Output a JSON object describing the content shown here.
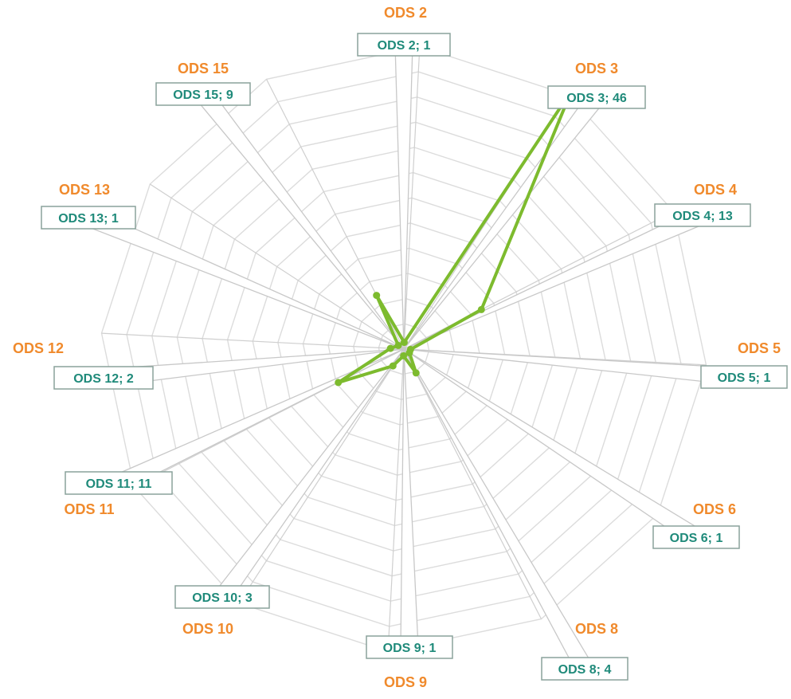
{
  "chart_data": {
    "type": "radar",
    "title": "",
    "categories": [
      "ODS 2",
      "ODS 3",
      "ODS 4",
      "ODS 5",
      "ODS 6",
      "ODS 8",
      "ODS 9",
      "ODS 10",
      "ODS 11",
      "ODS 12",
      "ODS 13",
      "ODS 15"
    ],
    "series": [
      {
        "values": [
          1,
          46,
          13,
          1,
          1,
          4,
          1,
          3,
          11,
          2,
          1,
          9
        ]
      }
    ],
    "data_labels": [
      "ODS 2; 1",
      "ODS 3; 46",
      "ODS 4; 13",
      "ODS 5; 1",
      "ODS 6; 1",
      "ODS 8; 4",
      "ODS 9; 1",
      "ODS 10; 3",
      "ODS 11; 11",
      "ODS 12; 2",
      "ODS 13; 1",
      "ODS 15; 9"
    ],
    "rlim": [
      0,
      50
    ],
    "grid": true,
    "legend": "none",
    "colors": {
      "series": "#7dbb2e",
      "category_label": "#f08a2c",
      "data_label": "#1f8a7a",
      "grid": "#dcdcdc"
    }
  }
}
